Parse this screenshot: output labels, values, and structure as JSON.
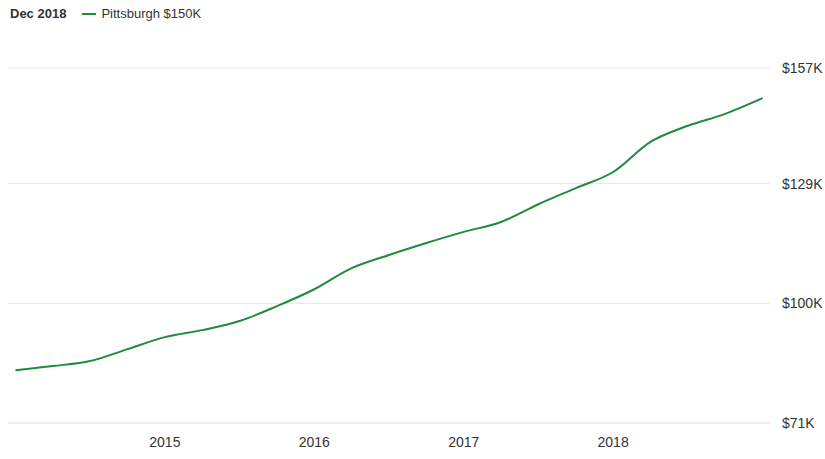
{
  "chart_data": {
    "type": "line",
    "title": "Dec 2018",
    "x": [
      2014.0,
      2014.25,
      2014.5,
      2014.75,
      2015.0,
      2015.25,
      2015.5,
      2015.75,
      2016.0,
      2016.25,
      2016.5,
      2016.75,
      2017.0,
      2017.25,
      2017.5,
      2017.75,
      2018.0,
      2018.25,
      2018.5,
      2018.75,
      2019.0
    ],
    "series": [
      {
        "name": "Pittsburgh $150K",
        "color": "#1e8c3a",
        "values": [
          83.8,
          84.8,
          86.0,
          88.9,
          91.8,
          93.5,
          95.7,
          99.3,
          103.4,
          108.5,
          111.7,
          114.6,
          117.3,
          119.7,
          124.0,
          127.9,
          131.8,
          139.1,
          143.0,
          145.9,
          149.7
        ]
      }
    ],
    "xlim": [
      2013.95,
      2019.05
    ],
    "xticks": [
      2015,
      2016,
      2017,
      2018
    ],
    "ylim": [
      71,
      157
    ],
    "yticks": [
      {
        "value": 71,
        "label": "$71K"
      },
      {
        "value": 100,
        "label": "$100K"
      },
      {
        "value": 129,
        "label": "$129K"
      },
      {
        "value": 157,
        "label": "$157K"
      }
    ],
    "grid": true,
    "legend": "top-left"
  }
}
